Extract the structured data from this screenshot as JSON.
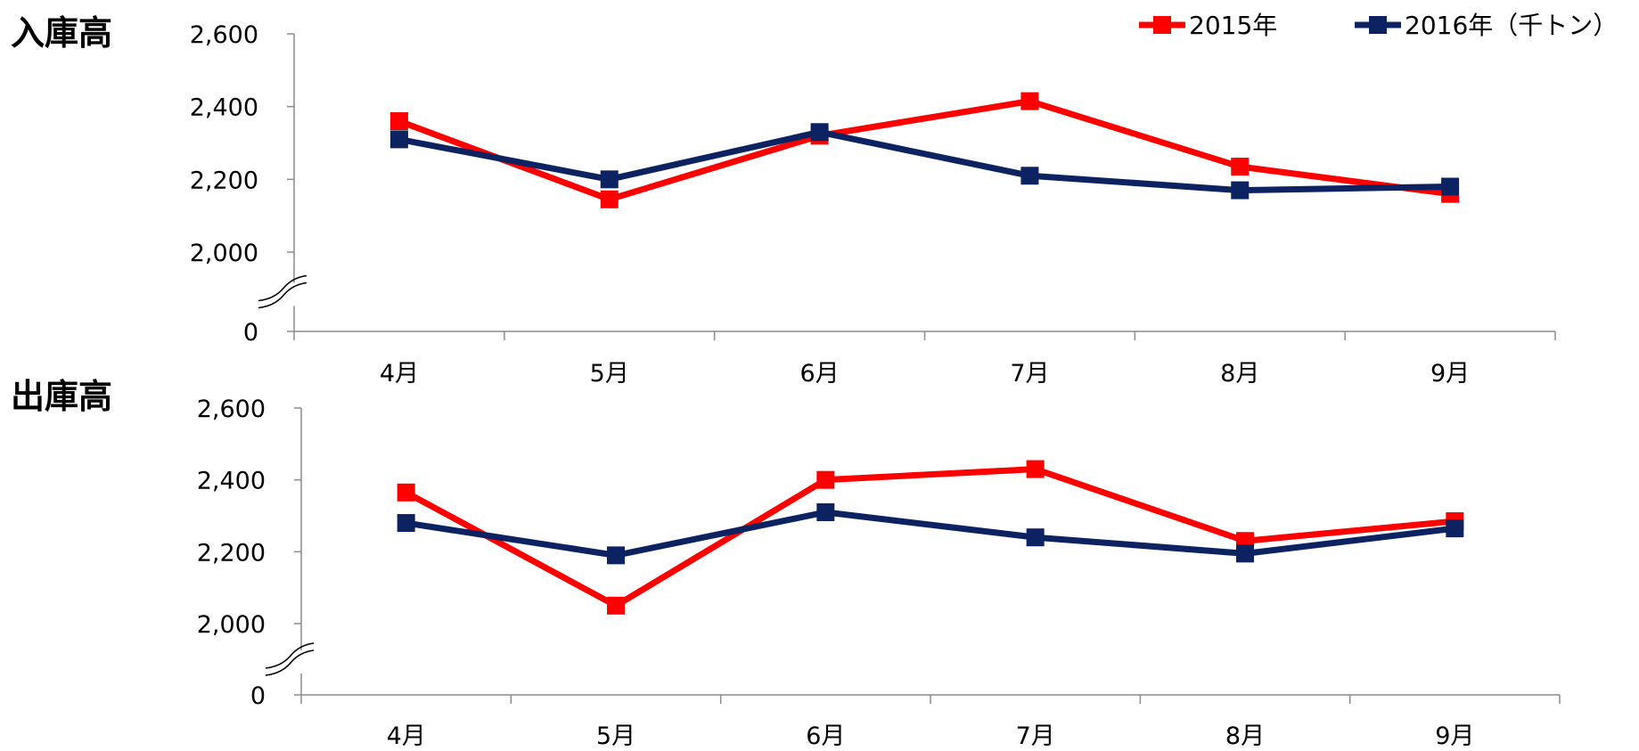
{
  "legend": {
    "position": "top-right",
    "items": [
      {
        "label": "2015年",
        "color": "#ff0000"
      },
      {
        "label": "2016年（千トン）",
        "color": "#0d2260"
      }
    ]
  },
  "colors": {
    "series_2015": "#ff0000",
    "series_2016": "#0d2260",
    "axis": "#8c8c8c"
  },
  "chart_data": [
    {
      "type": "line",
      "title": "入庫高",
      "categories": [
        "4月",
        "5月",
        "6月",
        "7月",
        "8月",
        "9月"
      ],
      "y_ticks": [
        "0",
        "2,000",
        "2,200",
        "2,400",
        "2,600"
      ],
      "ylim": [
        2000,
        2600
      ],
      "axis_break": true,
      "grid": false,
      "series": [
        {
          "name": "2015年",
          "values": [
            2360,
            2145,
            2320,
            2415,
            2235,
            2160
          ]
        },
        {
          "name": "2016年（千トン）",
          "values": [
            2310,
            2200,
            2330,
            2210,
            2170,
            2180
          ]
        }
      ]
    },
    {
      "type": "line",
      "title": "出庫高",
      "categories": [
        "4月",
        "5月",
        "6月",
        "7月",
        "8月",
        "9月"
      ],
      "y_ticks": [
        "0",
        "2,000",
        "2,200",
        "2,400",
        "2,600"
      ],
      "ylim": [
        2000,
        2600
      ],
      "axis_break": true,
      "grid": false,
      "series": [
        {
          "name": "2015年",
          "values": [
            2365,
            2050,
            2400,
            2430,
            2230,
            2285
          ]
        },
        {
          "name": "2016年（千トン）",
          "values": [
            2280,
            2190,
            2310,
            2240,
            2195,
            2265
          ]
        }
      ]
    }
  ]
}
